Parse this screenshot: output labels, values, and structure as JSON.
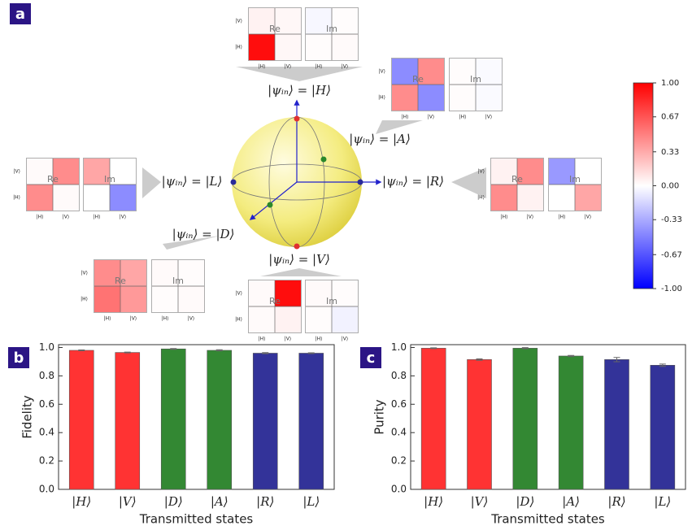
{
  "panel_a": {
    "label": "a",
    "basis": [
      "|H⟩",
      "|V⟩"
    ],
    "parts": [
      "Re",
      "Im"
    ],
    "clim": [
      -1,
      1
    ],
    "cticks": [
      {
        "value": 1,
        "label": "1.00"
      },
      0.67,
      0.33,
      {
        "value": 0,
        "label": "0.00"
      },
      -0.33,
      -0.67,
      {
        "value": -1,
        "label": "-1.00"
      }
    ],
    "states": [
      {
        "label": "|ψᵢₙ⟩ = |H⟩",
        "re": [
          [
            0.05,
            0.03
          ],
          [
            0.95,
            0.03
          ]
        ],
        "im": [
          [
            -0.03,
            0.01
          ],
          [
            0.01,
            0.02
          ]
        ]
      },
      {
        "label": "|ψᵢₙ⟩ = |A⟩",
        "re": [
          [
            -0.45,
            0.45
          ],
          [
            0.45,
            -0.45
          ]
        ],
        "im": [
          [
            0.01,
            -0.02
          ],
          [
            0.01,
            -0.02
          ]
        ]
      },
      {
        "label": "|ψᵢₙ⟩ = |L⟩",
        "re": [
          [
            0.02,
            0.45
          ],
          [
            0.45,
            0.02
          ]
        ],
        "im": [
          [
            0.35,
            0.0
          ],
          [
            0.0,
            -0.45
          ]
        ]
      },
      {
        "label": "|ψᵢₙ⟩ = |R⟩",
        "re": [
          [
            0.05,
            0.45
          ],
          [
            0.45,
            0.05
          ]
        ],
        "im": [
          [
            -0.4,
            0.0
          ],
          [
            0.0,
            0.35
          ]
        ]
      },
      {
        "label": "|ψᵢₙ⟩ = |D⟩",
        "re": [
          [
            0.45,
            0.35
          ],
          [
            0.55,
            0.4
          ]
        ],
        "im": [
          [
            0.02,
            0.01
          ],
          [
            0.01,
            0.02
          ]
        ]
      },
      {
        "label": "|ψᵢₙ⟩ = |V⟩",
        "re": [
          [
            0.02,
            0.95
          ],
          [
            0.02,
            0.05
          ]
        ],
        "im": [
          [
            0.02,
            0.01
          ],
          [
            0.01,
            -0.05
          ]
        ]
      }
    ]
  },
  "chart_data": [
    {
      "type": "bar",
      "label": "b",
      "ylabel": "Fidelity",
      "xlabel": "Transmitted states",
      "categories": [
        "|H⟩",
        "|V⟩",
        "|D⟩",
        "|A⟩",
        "|R⟩",
        "|L⟩"
      ],
      "values": [
        0.98,
        0.965,
        0.99,
        0.98,
        0.96,
        0.96
      ],
      "errors": [
        0.003,
        0.003,
        0.003,
        0.004,
        0.004,
        0.003
      ],
      "colors": [
        "#ff3333",
        "#ff3333",
        "#338833",
        "#338833",
        "#333399",
        "#333399"
      ],
      "ylim": [
        0,
        1.02
      ],
      "yticks": [
        {
          "value": 0,
          "label": "0.0"
        },
        0.2,
        0.4,
        0.6,
        0.8,
        {
          "value": 1,
          "label": "1.0"
        }
      ]
    },
    {
      "type": "bar",
      "label": "c",
      "ylabel": "Purity",
      "xlabel": "Transmitted states",
      "categories": [
        "|H⟩",
        "|V⟩",
        "|D⟩",
        "|A⟩",
        "|R⟩",
        "|L⟩"
      ],
      "values": [
        0.995,
        0.915,
        0.995,
        0.94,
        0.915,
        0.875
      ],
      "errors": [
        0.003,
        0.005,
        0.004,
        0.004,
        0.015,
        0.008
      ],
      "colors": [
        "#ff3333",
        "#ff3333",
        "#338833",
        "#338833",
        "#333399",
        "#333399"
      ],
      "ylim": [
        0,
        1.02
      ],
      "yticks": [
        {
          "value": 0,
          "label": "0.0"
        },
        0.2,
        0.4,
        0.6,
        0.8,
        {
          "value": 1,
          "label": "1.0"
        }
      ]
    }
  ]
}
